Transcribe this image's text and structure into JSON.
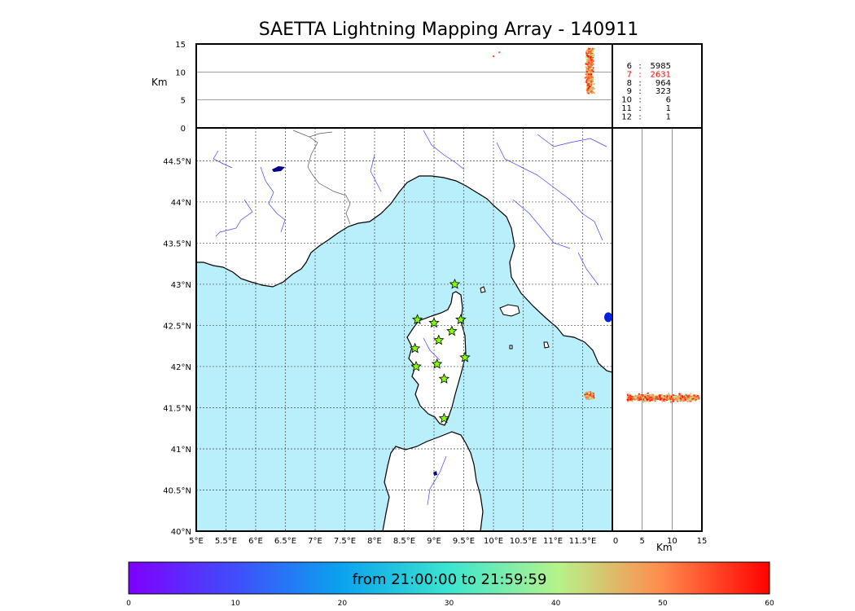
{
  "chart_data": [
    {
      "type": "map",
      "title": "SAETTA Lightning Mapping Array - 140911",
      "region": "plan-view",
      "xlim": [
        5,
        12.0
      ],
      "ylim": [
        40,
        44.9
      ],
      "x_ticks": [
        "5°E",
        "5.5°E",
        "6°E",
        "6.5°E",
        "7°E",
        "7.5°E",
        "8°E",
        "8.5°E",
        "9°E",
        "9.5°E",
        "10°E",
        "10.5°E",
        "11°E",
        "11.5°E"
      ],
      "x_tick_values": [
        5,
        5.5,
        6,
        6.5,
        7,
        7.5,
        8,
        8.5,
        9,
        9.5,
        10,
        10.5,
        11,
        11.5
      ],
      "y_ticks": [
        "40°N",
        "40.5°N",
        "41°N",
        "41.5°N",
        "42°N",
        "42.5°N",
        "43°N",
        "43.5°N",
        "44°N",
        "44.5°N"
      ],
      "y_tick_values": [
        40,
        40.5,
        41,
        41.5,
        42,
        42.5,
        43,
        43.5,
        44,
        44.5
      ],
      "grid": true,
      "stations": [
        {
          "lon": 9.35,
          "lat": 43.0
        },
        {
          "lon": 8.72,
          "lat": 42.57
        },
        {
          "lon": 9.0,
          "lat": 42.53
        },
        {
          "lon": 9.45,
          "lat": 42.57
        },
        {
          "lon": 9.08,
          "lat": 42.32
        },
        {
          "lon": 9.3,
          "lat": 42.43
        },
        {
          "lon": 8.68,
          "lat": 42.22
        },
        {
          "lon": 9.52,
          "lat": 42.11
        },
        {
          "lon": 8.7,
          "lat": 42.0
        },
        {
          "lon": 9.05,
          "lat": 42.03
        },
        {
          "lon": 9.17,
          "lat": 41.85
        },
        {
          "lon": 9.17,
          "lat": 41.37
        }
      ],
      "sources": [
        {
          "lon": 11.62,
          "lat": 41.65,
          "spread_lon": 0.09,
          "spread_lat": 0.05,
          "count": 220,
          "time_range": [
            40,
            60
          ]
        }
      ],
      "blue_marker": {
        "lon": 12.0,
        "lat": 42.6
      }
    },
    {
      "type": "scatter",
      "region": "alt-vs-lon",
      "ylabel": "Km",
      "ylim": [
        0,
        15
      ],
      "y_ticks": [
        "0",
        "5",
        "10",
        "15"
      ],
      "y_tick_values": [
        0,
        5,
        10,
        15
      ],
      "gridlines_y": [
        5,
        10
      ],
      "sources": [
        {
          "lon": 11.62,
          "alt_center": 10.2,
          "alt_spread": 4.0,
          "count": 500,
          "time_range": [
            40,
            60
          ]
        }
      ],
      "outliers": [
        {
          "lon": 10.0,
          "alt": 12.8
        },
        {
          "lon": 10.1,
          "alt": 13.5
        }
      ]
    },
    {
      "type": "scatter",
      "region": "lat-vs-alt",
      "xlabel": "Km",
      "xlim": [
        0,
        15
      ],
      "x_ticks": [
        "0",
        "5",
        "10",
        "15"
      ],
      "x_tick_values": [
        0,
        5,
        10,
        15
      ],
      "gridlines_x": [
        5,
        10
      ],
      "sources": [
        {
          "lat": 41.62,
          "alt_min": 2.5,
          "alt_max": 14.5,
          "lat_spread": 0.06,
          "count": 500,
          "time_range": [
            40,
            60
          ]
        }
      ]
    },
    {
      "type": "table",
      "region": "station-counts",
      "rows": [
        {
          "k": "6",
          "v": "5985",
          "highlight": false
        },
        {
          "k": "7",
          "v": "2631",
          "highlight": true
        },
        {
          "k": "8",
          "v": "964",
          "highlight": false
        },
        {
          "k": "9",
          "v": "323",
          "highlight": false
        },
        {
          "k": "10",
          "v": "6",
          "highlight": false
        },
        {
          "k": "11",
          "v": "1",
          "highlight": false
        },
        {
          "k": "12",
          "v": "1",
          "highlight": false
        }
      ],
      "separator": ":",
      "highlight_color": "#ff0000"
    },
    {
      "type": "colorbar",
      "label": "from 21:00:00 to 21:59:59",
      "range": [
        0,
        60
      ],
      "ticks": [
        "0",
        "10",
        "20",
        "30",
        "40",
        "50",
        "60"
      ],
      "tick_values": [
        0,
        10,
        20,
        30,
        40,
        50,
        60
      ],
      "colormap": "rainbow"
    }
  ],
  "colors": {
    "sea": "#b9eefb",
    "land": "#ffffff",
    "coast": "#000000",
    "rivers": "#4040ff",
    "borders": "#555555",
    "grid": "#444444",
    "station_fill": "#88ff00",
    "blue_marker": "#0022dd"
  }
}
